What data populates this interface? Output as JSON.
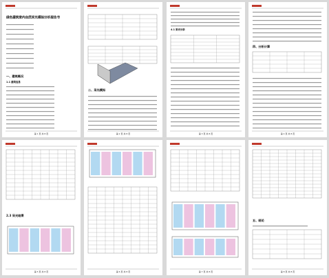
{
  "title": "绿色建筑室内自然采光模拟分析报告书",
  "pages": [
    {
      "headings": [
        "一、建筑概况",
        "1.1 建筑信息"
      ],
      "footer": "第 1 页 共 8 页"
    },
    {
      "headings": [
        "二、采光模拟"
      ],
      "footer": "第 2 页 共 8 页"
    },
    {
      "headings": [
        "4.1 采光分析"
      ],
      "footer": "第 3 页 共 8 页"
    },
    {
      "headings": [
        "四、分析计算"
      ],
      "footer": "第 4 页 共 8 页"
    },
    {
      "headings": [
        "2.3 采光结果"
      ],
      "footer": "第 5 页 共 8 页"
    },
    {
      "headings": [],
      "footer": "第 6 页 共 8 页"
    },
    {
      "headings": [],
      "footer": "第 7 页 共 8 页"
    },
    {
      "headings": [
        "五、结论"
      ],
      "footer": "第 8 页 共 8 页"
    }
  ]
}
